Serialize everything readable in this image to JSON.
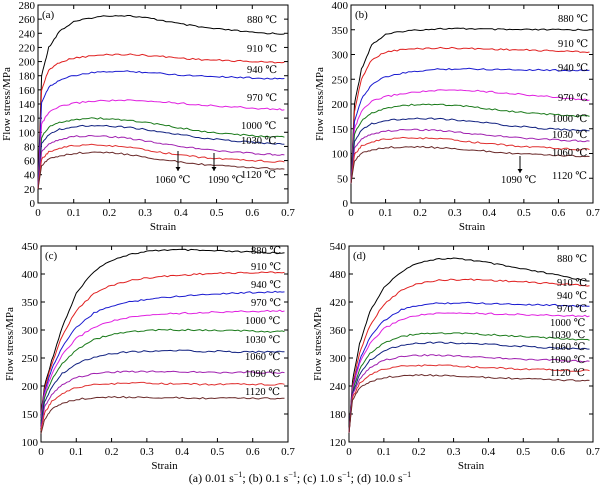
{
  "figure": {
    "caption": [
      {
        "base": "(a) 0.01 s",
        "sup": "−1"
      },
      {
        "base": "; (b) 0.1  s",
        "sup": "−1"
      },
      {
        "base": "; (c) 1.0 s",
        "sup": "−1"
      },
      {
        "base": "; (d) 10.0 s",
        "sup": "−1"
      }
    ]
  },
  "chart_data": [
    {
      "type": "line",
      "panel": "(a)",
      "xlabel": "Strain",
      "ylabel": "Flow stress/MPa",
      "xlim": [
        0,
        0.7
      ],
      "ylim": [
        0,
        280
      ],
      "xticks": [
        0,
        0.1,
        0.2,
        0.3,
        0.4,
        0.5,
        0.6,
        0.7
      ],
      "yticks": [
        0,
        20,
        40,
        60,
        80,
        100,
        120,
        140,
        160,
        180,
        200,
        220,
        240,
        260,
        280
      ],
      "x": [
        0,
        0.01,
        0.03,
        0.06,
        0.1,
        0.15,
        0.2,
        0.25,
        0.3,
        0.35,
        0.4,
        0.45,
        0.5,
        0.55,
        0.6,
        0.65,
        0.69
      ],
      "series": [
        {
          "name": "880 ℃",
          "color": "#000000",
          "values": [
            20,
            180,
            220,
            243,
            256,
            262,
            265,
            265,
            262,
            258,
            253,
            249,
            246,
            244,
            241,
            240,
            239
          ]
        },
        {
          "name": "910 ℃",
          "color": "#e02020",
          "values": [
            20,
            160,
            188,
            199,
            205,
            208,
            210,
            210,
            209,
            207,
            205,
            203,
            202,
            201,
            200,
            199,
            199
          ]
        },
        {
          "name": "940 ℃",
          "color": "#1a1ad0",
          "values": [
            20,
            142,
            164,
            174,
            180,
            184,
            186,
            186,
            185,
            183,
            181,
            180,
            179,
            178,
            177,
            176,
            176
          ]
        },
        {
          "name": "970 ℃",
          "color": "#e020e0",
          "values": [
            20,
            112,
            128,
            136,
            141,
            144,
            145,
            145,
            144,
            143,
            141,
            139,
            137,
            136,
            134,
            133,
            132
          ]
        },
        {
          "name": "1000 ℃",
          "color": "#1a7a1a",
          "values": [
            20,
            93,
            107,
            114,
            118,
            120,
            119,
            117,
            114,
            110,
            106,
            102,
            99,
            97,
            95,
            94,
            93
          ]
        },
        {
          "name": "1030 ℃",
          "color": "#102080",
          "values": [
            20,
            85,
            97,
            104,
            108,
            110,
            109,
            107,
            104,
            100,
            96,
            93,
            90,
            88,
            86,
            84,
            83
          ]
        },
        {
          "name": "1060 ℃",
          "color": "#a020b0",
          "values": [
            20,
            72,
            84,
            90,
            94,
            95,
            94,
            92,
            88,
            84,
            80,
            77,
            74,
            72,
            70,
            69,
            68
          ]
        },
        {
          "name": "1090 ℃",
          "color": "#e03030",
          "values": [
            20,
            62,
            72,
            78,
            81,
            82,
            81,
            79,
            75,
            71,
            68,
            65,
            63,
            61,
            60,
            59,
            58
          ]
        },
        {
          "name": "1120 ℃",
          "color": "#6a2a2a",
          "values": [
            20,
            53,
            62,
            67,
            70,
            72,
            71,
            69,
            65,
            61,
            58,
            55,
            53,
            51,
            50,
            49,
            48
          ]
        }
      ]
    },
    {
      "type": "line",
      "panel": "(b)",
      "xlabel": "Strain",
      "ylabel": "Flow stress/MPa",
      "xlim": [
        0,
        0.7
      ],
      "ylim": [
        0,
        400
      ],
      "xticks": [
        0,
        0.1,
        0.2,
        0.3,
        0.4,
        0.5,
        0.6,
        0.7
      ],
      "yticks": [
        0,
        50,
        100,
        150,
        200,
        250,
        300,
        350,
        400
      ],
      "x": [
        0,
        0.01,
        0.03,
        0.06,
        0.1,
        0.15,
        0.2,
        0.25,
        0.3,
        0.35,
        0.4,
        0.45,
        0.5,
        0.55,
        0.6,
        0.65,
        0.69
      ],
      "series": [
        {
          "name": "880 ℃",
          "color": "#000000",
          "values": [
            40,
            200,
            270,
            320,
            340,
            347,
            350,
            352,
            352,
            352,
            351,
            350,
            350,
            350,
            350,
            350,
            350
          ]
        },
        {
          "name": "910 ℃",
          "color": "#e02020",
          "values": [
            40,
            185,
            250,
            290,
            305,
            310,
            312,
            313,
            313,
            312,
            311,
            310,
            309,
            308,
            307,
            306,
            305
          ]
        },
        {
          "name": "940 ℃",
          "color": "#1a1ad0",
          "values": [
            40,
            165,
            210,
            240,
            255,
            262,
            267,
            270,
            271,
            271,
            270,
            270,
            269,
            269,
            268,
            268,
            268
          ]
        },
        {
          "name": "970 ℃",
          "color": "#e020e0",
          "values": [
            40,
            150,
            185,
            205,
            215,
            221,
            225,
            227,
            228,
            227,
            225,
            222,
            219,
            216,
            213,
            210,
            208
          ]
        },
        {
          "name": "1000 ℃",
          "color": "#1a7a1a",
          "values": [
            40,
            140,
            165,
            182,
            192,
            197,
            199,
            199,
            197,
            194,
            190,
            186,
            183,
            180,
            178,
            176,
            175
          ]
        },
        {
          "name": "1030 ℃",
          "color": "#102080",
          "values": [
            40,
            125,
            148,
            160,
            167,
            170,
            171,
            170,
            168,
            165,
            161,
            157,
            154,
            151,
            149,
            147,
            146
          ]
        },
        {
          "name": "1060 ℃",
          "color": "#a020b0",
          "values": [
            40,
            110,
            130,
            140,
            145,
            148,
            148,
            147,
            144,
            140,
            137,
            134,
            131,
            129,
            127,
            126,
            125
          ]
        },
        {
          "name": "1090 ℃",
          "color": "#e03030",
          "values": [
            40,
            98,
            115,
            124,
            129,
            131,
            131,
            130,
            127,
            123,
            120,
            117,
            114,
            112,
            110,
            109,
            108
          ]
        },
        {
          "name": "1120 ℃",
          "color": "#6a2a2a",
          "values": [
            40,
            85,
            100,
            108,
            112,
            113,
            113,
            112,
            110,
            107,
            104,
            101,
            99,
            97,
            96,
            95,
            94
          ]
        }
      ]
    },
    {
      "type": "line",
      "panel": "(c)",
      "xlabel": "Strain",
      "ylabel": "Flow stress/MPa",
      "xlim": [
        0,
        0.7
      ],
      "ylim": [
        100,
        450
      ],
      "xticks": [
        0,
        0.1,
        0.2,
        0.3,
        0.4,
        0.5,
        0.6,
        0.7
      ],
      "yticks": [
        100,
        150,
        200,
        250,
        300,
        350,
        400,
        450
      ],
      "x": [
        0,
        0.01,
        0.03,
        0.06,
        0.1,
        0.15,
        0.2,
        0.25,
        0.3,
        0.35,
        0.4,
        0.45,
        0.5,
        0.55,
        0.6,
        0.65,
        0.69
      ],
      "series": [
        {
          "name": "880 ℃",
          "color": "#000000",
          "values": [
            150,
            200,
            245,
            305,
            365,
            405,
            425,
            435,
            440,
            443,
            443,
            442,
            441,
            440,
            439,
            438,
            438
          ]
        },
        {
          "name": "910 ℃",
          "color": "#e02020",
          "values": [
            150,
            195,
            238,
            290,
            335,
            365,
            380,
            388,
            393,
            396,
            398,
            400,
            401,
            402,
            402,
            403,
            403
          ]
        },
        {
          "name": "940 ℃",
          "color": "#1a1ad0",
          "values": [
            145,
            190,
            230,
            270,
            305,
            330,
            343,
            350,
            355,
            358,
            361,
            363,
            365,
            366,
            367,
            368,
            368
          ]
        },
        {
          "name": "970 ℃",
          "color": "#e020e0",
          "values": [
            140,
            185,
            220,
            255,
            285,
            305,
            316,
            322,
            326,
            329,
            330,
            331,
            332,
            333,
            333,
            334,
            334
          ]
        },
        {
          "name": "1000 ℃",
          "color": "#1a7a1a",
          "values": [
            135,
            180,
            210,
            240,
            265,
            283,
            292,
            297,
            299,
            300,
            300,
            300,
            299,
            299,
            298,
            297,
            297
          ]
        },
        {
          "name": "1030 ℃",
          "color": "#102080",
          "values": [
            130,
            172,
            198,
            222,
            240,
            252,
            258,
            261,
            262,
            263,
            263,
            262,
            262,
            261,
            261,
            261,
            261
          ]
        },
        {
          "name": "1060 ℃",
          "color": "#a020b0",
          "values": [
            125,
            162,
            185,
            203,
            215,
            222,
            225,
            226,
            226,
            226,
            225,
            225,
            224,
            224,
            224,
            224,
            224
          ]
        },
        {
          "name": "1090 ℃",
          "color": "#e03030",
          "values": [
            120,
            152,
            172,
            187,
            197,
            202,
            204,
            205,
            205,
            204,
            204,
            203,
            203,
            203,
            203,
            203,
            203
          ]
        },
        {
          "name": "1120 ℃",
          "color": "#6a2a2a",
          "values": [
            115,
            140,
            158,
            170,
            176,
            179,
            180,
            180,
            180,
            179,
            179,
            178,
            178,
            178,
            178,
            178,
            178
          ]
        }
      ]
    },
    {
      "type": "line",
      "panel": "(d)",
      "xlabel": "Strain",
      "ylabel": "Flow stress/MPa",
      "xlim": [
        0,
        0.7
      ],
      "ylim": [
        120,
        540
      ],
      "xticks": [
        0,
        0.1,
        0.2,
        0.3,
        0.4,
        0.5,
        0.6,
        0.7
      ],
      "yticks": [
        120,
        180,
        240,
        300,
        360,
        420,
        480,
        540
      ],
      "x": [
        0,
        0.01,
        0.03,
        0.06,
        0.1,
        0.15,
        0.2,
        0.25,
        0.3,
        0.35,
        0.4,
        0.45,
        0.5,
        0.55,
        0.6,
        0.65,
        0.69
      ],
      "series": [
        {
          "name": "880 ℃",
          "color": "#000000",
          "values": [
            140,
            250,
            330,
            400,
            450,
            485,
            505,
            512,
            513,
            510,
            504,
            497,
            490,
            484,
            477,
            470,
            465
          ]
        },
        {
          "name": "910 ℃",
          "color": "#e02020",
          "values": [
            140,
            240,
            310,
            370,
            415,
            445,
            460,
            466,
            468,
            468,
            467,
            465,
            463,
            461,
            459,
            457,
            455
          ]
        },
        {
          "name": "940 ℃",
          "color": "#1a1ad0",
          "values": [
            140,
            235,
            295,
            345,
            380,
            403,
            413,
            417,
            418,
            418,
            417,
            416,
            415,
            414,
            413,
            412,
            411
          ]
        },
        {
          "name": "970 ℃",
          "color": "#e020e0",
          "values": [
            140,
            232,
            288,
            330,
            363,
            383,
            392,
            395,
            396,
            396,
            395,
            394,
            393,
            392,
            391,
            390,
            390
          ]
        },
        {
          "name": "1000 ℃",
          "color": "#1a7a1a",
          "values": [
            140,
            228,
            275,
            310,
            333,
            346,
            352,
            353,
            353,
            352,
            350,
            348,
            346,
            344,
            342,
            340,
            338
          ]
        },
        {
          "name": "1030 ℃",
          "color": "#102080",
          "values": [
            140,
            225,
            265,
            295,
            316,
            328,
            332,
            333,
            332,
            331,
            329,
            327,
            325,
            323,
            321,
            320,
            319
          ]
        },
        {
          "name": "1060 ℃",
          "color": "#a020b0",
          "values": [
            140,
            220,
            255,
            280,
            295,
            303,
            306,
            306,
            305,
            303,
            301,
            299,
            297,
            296,
            295,
            294,
            293
          ]
        },
        {
          "name": "1090 ℃",
          "color": "#e03030",
          "values": [
            140,
            215,
            245,
            265,
            276,
            282,
            284,
            284,
            283,
            281,
            279,
            278,
            276,
            275,
            274,
            273,
            273
          ]
        },
        {
          "name": "1120 ℃",
          "color": "#6a2a2a",
          "values": [
            140,
            210,
            235,
            250,
            258,
            262,
            263,
            263,
            262,
            260,
            258,
            257,
            255,
            254,
            253,
            252,
            252
          ]
        }
      ]
    }
  ]
}
